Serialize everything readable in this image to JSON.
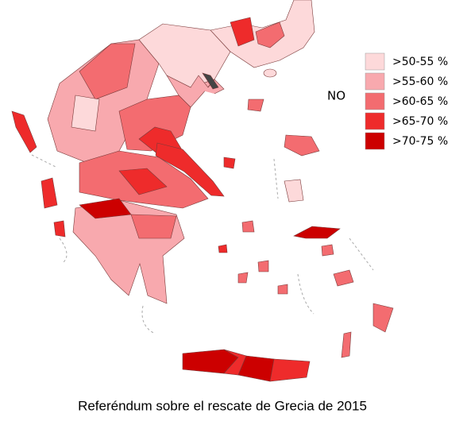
{
  "legend": {
    "title": "NO",
    "items": [
      {
        "label": ">50-55 %",
        "color": "#fdd9da"
      },
      {
        "label": ">55-60 %",
        "color": "#f8a9ae"
      },
      {
        "label": ">60-65 %",
        "color": "#f36c70"
      },
      {
        "label": ">65-70 %",
        "color": "#ee2b2b"
      },
      {
        "label": ">70-75 %",
        "color": "#cc0000"
      }
    ]
  },
  "caption": "Referéndum sobre el rescate de Grecia de 2015"
}
